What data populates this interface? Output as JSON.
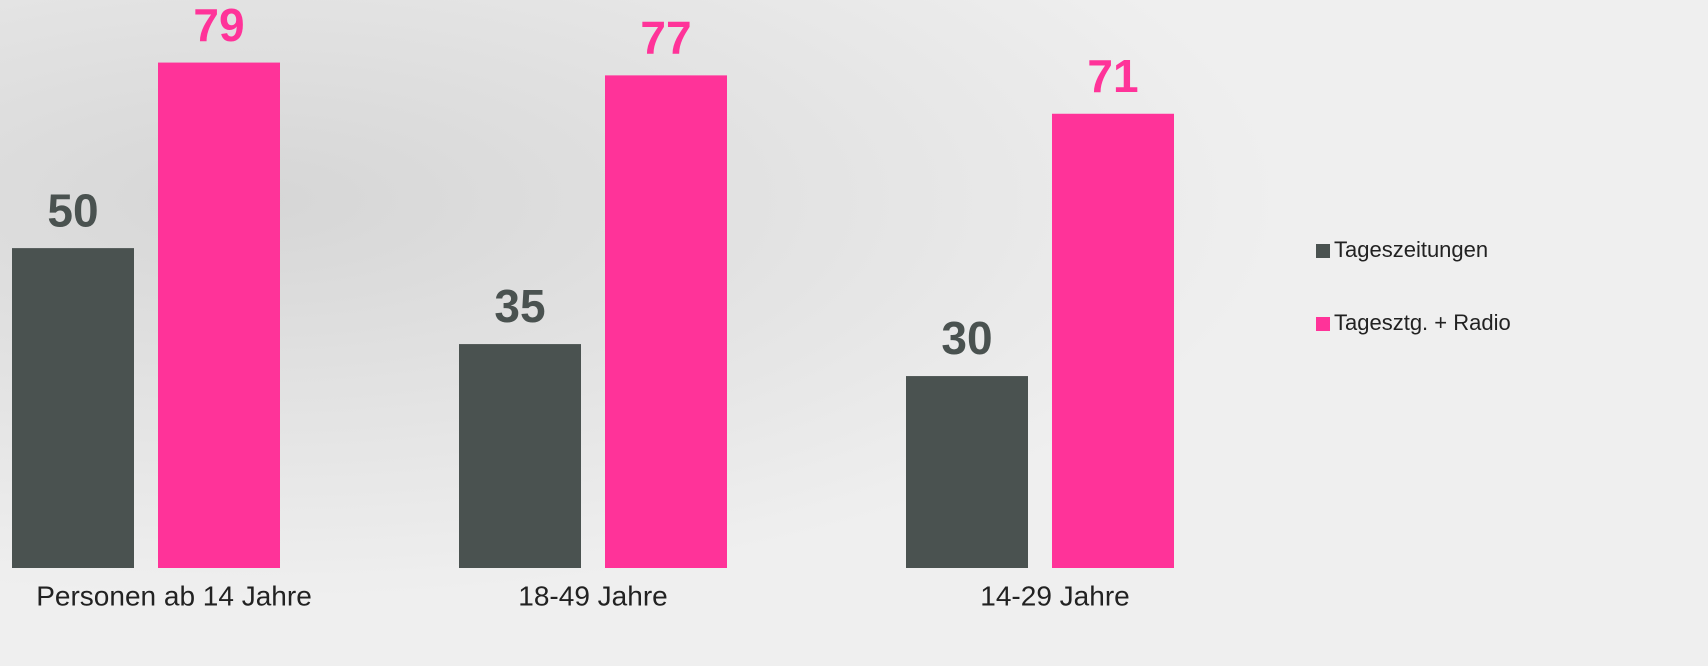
{
  "chart_data": {
    "type": "bar",
    "categories": [
      "Personen ab 14 Jahre",
      "18-49 Jahre",
      "14-29 Jahre"
    ],
    "series": [
      {
        "name": "Tageszeitungen",
        "color": "#4a5250",
        "values": [
          50,
          35,
          30
        ]
      },
      {
        "name": "Tagesztg. + Radio",
        "color": "#ff3399",
        "values": [
          79,
          77,
          71
        ]
      }
    ],
    "ylim": [
      0,
      88
    ],
    "legend": "right"
  }
}
